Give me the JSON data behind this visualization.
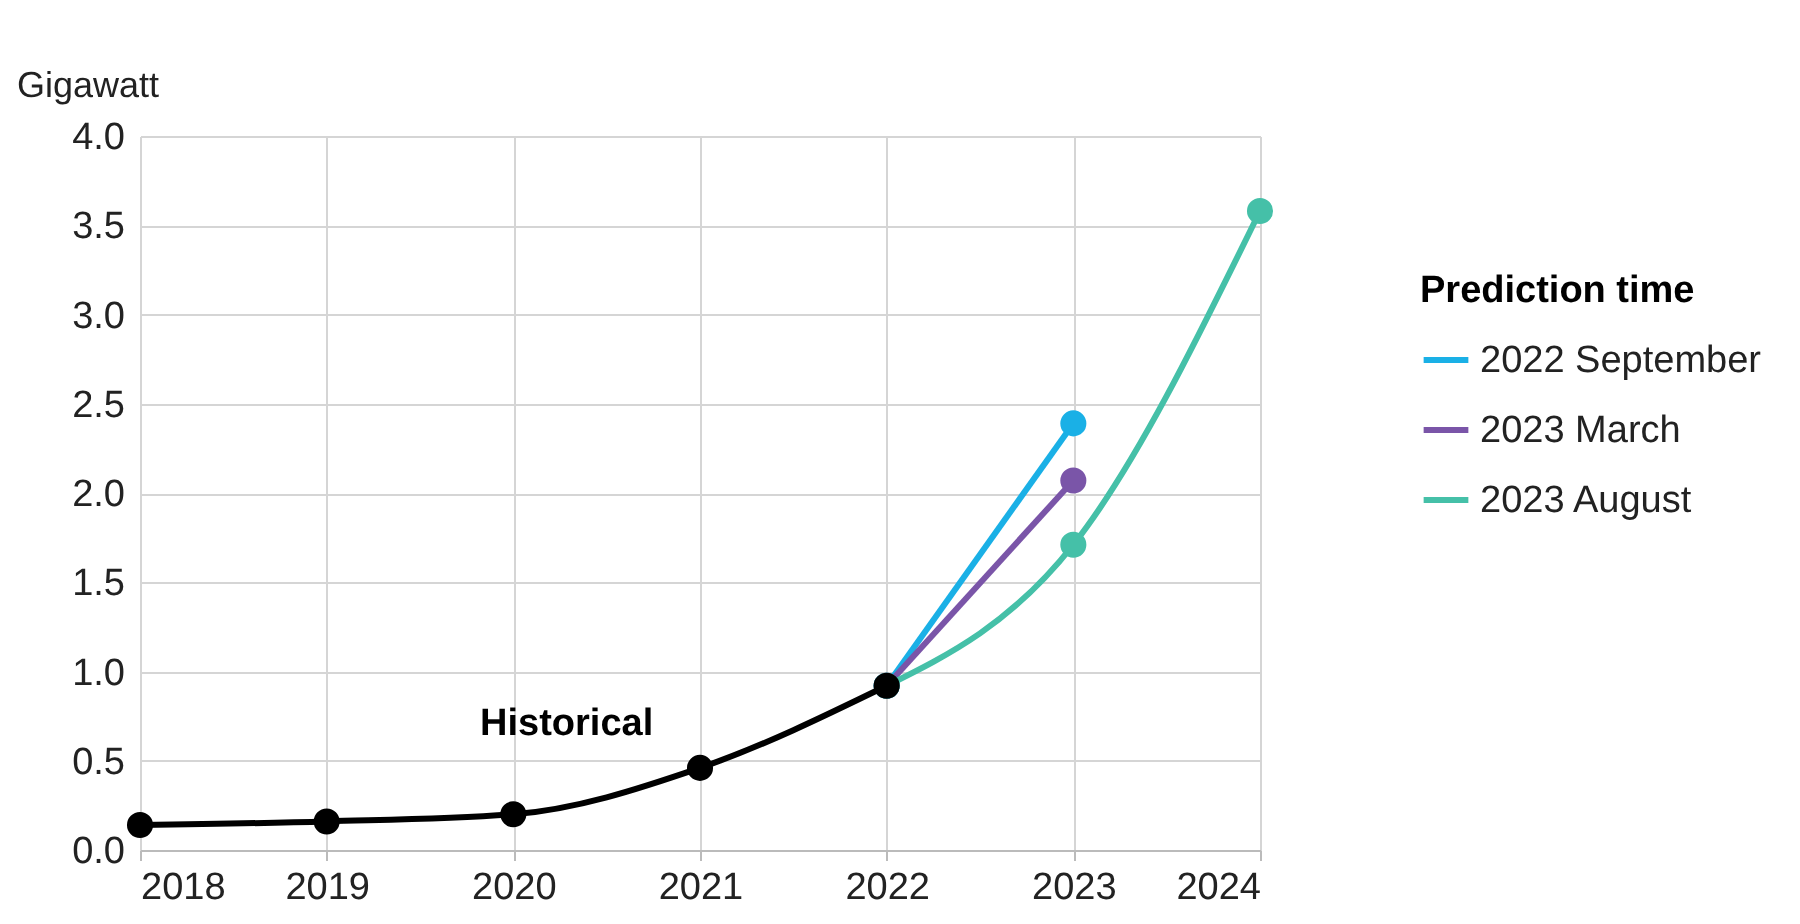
{
  "chart_data": {
    "type": "line",
    "ylabel": "Gigawatt",
    "legend_title": "Prediction time",
    "xlim": [
      2018,
      2024
    ],
    "xticks": [
      2018,
      2019,
      2020,
      2021,
      2022,
      2023,
      2024
    ],
    "ylim": [
      0,
      4
    ],
    "yticks": [
      {
        "value": 0,
        "label": "0.0"
      },
      {
        "value": 0.5,
        "label": "0.5"
      },
      {
        "value": 1,
        "label": "1.0"
      },
      {
        "value": 1.5,
        "label": "1.5"
      },
      {
        "value": 2,
        "label": "2.0"
      },
      {
        "value": 2.5,
        "label": "2.5"
      },
      {
        "value": 3,
        "label": "3.0"
      },
      {
        "value": 3.5,
        "label": "3.5"
      },
      {
        "value": 4,
        "label": "4.0"
      }
    ],
    "grid": true,
    "legend": "right",
    "marker": "circle",
    "line_style": "solid",
    "series": [
      {
        "name": "Historical",
        "color": "#000000",
        "x": [
          2018,
          2019,
          2020,
          2021,
          2022
        ],
        "values": [
          0.14,
          0.16,
          0.2,
          0.46,
          0.92
        ]
      },
      {
        "name": "2022 September",
        "color": "#1ab0e6",
        "x": [
          2022,
          2023
        ],
        "values": [
          0.92,
          2.39
        ]
      },
      {
        "name": "2023 March",
        "color": "#7a55a8",
        "x": [
          2022,
          2023
        ],
        "values": [
          0.92,
          2.07
        ]
      },
      {
        "name": "2023 August",
        "color": "#45c0a8",
        "x": [
          2022,
          2023,
          2024
        ],
        "values": [
          0.92,
          1.71,
          3.58
        ]
      }
    ]
  }
}
